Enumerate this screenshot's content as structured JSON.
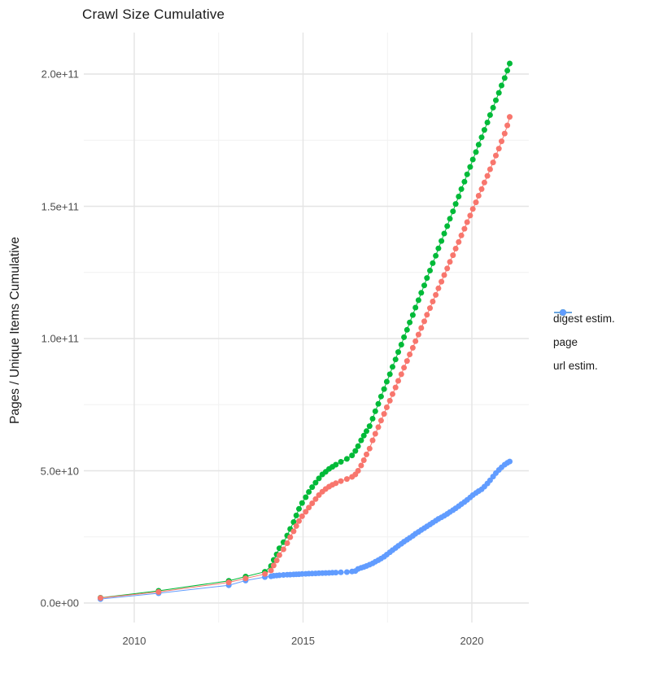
{
  "chart_data": {
    "type": "scatter",
    "title": "Crawl Size Cumulative",
    "xlabel": "",
    "ylabel": "Pages / Unique Items Cumulative",
    "y_unit": "items (point values stored in billions, 1e9)",
    "grid": "major and minor, light gray on white (theme_minimal)",
    "legend_position": "right",
    "x_axis": {
      "ticks": [
        {
          "value": 2010,
          "label": "2010"
        },
        {
          "value": 2015,
          "label": "2015"
        },
        {
          "value": 2020,
          "label": "2020"
        }
      ],
      "minor_ticks": [
        2012.5,
        2017.5
      ],
      "range": [
        2008.5,
        2021.7
      ]
    },
    "y_axis": {
      "ticks": [
        {
          "value": 0,
          "label": "0.0e+00"
        },
        {
          "value": 50,
          "label": "5.0e+10"
        },
        {
          "value": 100,
          "label": "1.0e+11"
        },
        {
          "value": 150,
          "label": "1.5e+11"
        },
        {
          "value": 200,
          "label": "2.0e+11"
        }
      ],
      "minor_ticks": [
        25,
        75,
        125,
        175
      ],
      "range": [
        0,
        215
      ]
    },
    "series": [
      {
        "name": "digest estim.",
        "color": "#F8766D",
        "points": [
          [
            2009.0,
            1.9
          ],
          [
            2010.72,
            4.2
          ],
          [
            2012.8,
            7.8
          ],
          [
            2013.3,
            9.3
          ],
          [
            2013.87,
            11.0
          ],
          [
            2014.05,
            12.3
          ],
          [
            2014.13,
            14.2
          ],
          [
            2014.22,
            16.1
          ],
          [
            2014.3,
            18.1
          ],
          [
            2014.42,
            20.3
          ],
          [
            2014.53,
            22.6
          ],
          [
            2014.62,
            24.9
          ],
          [
            2014.72,
            27.1
          ],
          [
            2014.8,
            29.1
          ],
          [
            2014.88,
            31.0
          ],
          [
            2014.97,
            32.8
          ],
          [
            2015.08,
            34.5
          ],
          [
            2015.17,
            36.1
          ],
          [
            2015.27,
            37.7
          ],
          [
            2015.37,
            39.3
          ],
          [
            2015.47,
            40.8
          ],
          [
            2015.57,
            42.1
          ],
          [
            2015.67,
            43.1
          ],
          [
            2015.77,
            44.0
          ],
          [
            2015.87,
            44.7
          ],
          [
            2015.97,
            45.3
          ],
          [
            2016.12,
            46.1
          ],
          [
            2016.3,
            46.9
          ],
          [
            2016.45,
            47.7
          ],
          [
            2016.55,
            48.6
          ],
          [
            2016.63,
            50.0
          ],
          [
            2016.72,
            52.0
          ],
          [
            2016.8,
            54.0
          ],
          [
            2016.88,
            56.2
          ],
          [
            2016.97,
            58.4
          ],
          [
            2017.06,
            61.5
          ],
          [
            2017.14,
            64.0
          ],
          [
            2017.23,
            66.5
          ],
          [
            2017.31,
            69.0
          ],
          [
            2017.4,
            71.5
          ],
          [
            2017.48,
            74.0
          ],
          [
            2017.57,
            76.5
          ],
          [
            2017.65,
            79.0
          ],
          [
            2017.74,
            81.5
          ],
          [
            2017.82,
            84.0
          ],
          [
            2017.91,
            86.5
          ],
          [
            2017.99,
            89.0
          ],
          [
            2018.08,
            91.5
          ],
          [
            2018.16,
            94.0
          ],
          [
            2018.25,
            96.5
          ],
          [
            2018.33,
            99.0
          ],
          [
            2018.42,
            101.5
          ],
          [
            2018.5,
            104.0
          ],
          [
            2018.59,
            106.5
          ],
          [
            2018.67,
            109.0
          ],
          [
            2018.76,
            111.5
          ],
          [
            2018.84,
            114.0
          ],
          [
            2018.93,
            116.5
          ],
          [
            2019.01,
            119.0
          ],
          [
            2019.1,
            121.5
          ],
          [
            2019.18,
            124.0
          ],
          [
            2019.27,
            126.5
          ],
          [
            2019.35,
            129.0
          ],
          [
            2019.44,
            131.5
          ],
          [
            2019.52,
            134.0
          ],
          [
            2019.61,
            136.5
          ],
          [
            2019.69,
            139.0
          ],
          [
            2019.78,
            141.5
          ],
          [
            2019.86,
            144.0
          ],
          [
            2019.95,
            146.5
          ],
          [
            2020.03,
            149.0
          ],
          [
            2020.12,
            151.5
          ],
          [
            2020.2,
            154.0
          ],
          [
            2020.29,
            156.5
          ],
          [
            2020.37,
            159.0
          ],
          [
            2020.46,
            161.5
          ],
          [
            2020.54,
            164.0
          ],
          [
            2020.63,
            166.6
          ],
          [
            2020.71,
            169.2
          ],
          [
            2020.8,
            171.8
          ],
          [
            2020.88,
            174.6
          ],
          [
            2020.97,
            177.5
          ],
          [
            2021.05,
            180.6
          ],
          [
            2021.12,
            183.8
          ]
        ]
      },
      {
        "name": "page",
        "color": "#00BA38",
        "points": [
          [
            2009.0,
            2.0
          ],
          [
            2010.72,
            4.6
          ],
          [
            2012.8,
            8.4
          ],
          [
            2013.3,
            10.0
          ],
          [
            2013.87,
            11.8
          ],
          [
            2014.05,
            14.0
          ],
          [
            2014.13,
            16.3
          ],
          [
            2014.22,
            18.4
          ],
          [
            2014.3,
            20.7
          ],
          [
            2014.42,
            23.0
          ],
          [
            2014.53,
            25.5
          ],
          [
            2014.62,
            28.0
          ],
          [
            2014.72,
            30.6
          ],
          [
            2014.8,
            33.1
          ],
          [
            2014.88,
            35.6
          ],
          [
            2014.97,
            37.8
          ],
          [
            2015.08,
            40.0
          ],
          [
            2015.17,
            42.0
          ],
          [
            2015.27,
            43.8
          ],
          [
            2015.37,
            45.5
          ],
          [
            2015.47,
            47.1
          ],
          [
            2015.57,
            48.6
          ],
          [
            2015.67,
            49.6
          ],
          [
            2015.77,
            50.7
          ],
          [
            2015.87,
            51.5
          ],
          [
            2015.97,
            52.3
          ],
          [
            2016.12,
            53.4
          ],
          [
            2016.3,
            54.5
          ],
          [
            2016.45,
            55.8
          ],
          [
            2016.55,
            57.5
          ],
          [
            2016.63,
            59.3
          ],
          [
            2016.72,
            61.5
          ],
          [
            2016.8,
            63.3
          ],
          [
            2016.88,
            65.0
          ],
          [
            2016.97,
            66.9
          ],
          [
            2017.06,
            69.7
          ],
          [
            2017.14,
            72.5
          ],
          [
            2017.23,
            75.3
          ],
          [
            2017.31,
            78.1
          ],
          [
            2017.4,
            80.9
          ],
          [
            2017.48,
            83.7
          ],
          [
            2017.57,
            86.5
          ],
          [
            2017.65,
            89.3
          ],
          [
            2017.74,
            92.1
          ],
          [
            2017.82,
            94.9
          ],
          [
            2017.91,
            97.7
          ],
          [
            2017.99,
            100.5
          ],
          [
            2018.08,
            103.3
          ],
          [
            2018.16,
            106.1
          ],
          [
            2018.25,
            108.9
          ],
          [
            2018.33,
            111.7
          ],
          [
            2018.42,
            114.5
          ],
          [
            2018.5,
            117.3
          ],
          [
            2018.59,
            120.1
          ],
          [
            2018.67,
            122.9
          ],
          [
            2018.76,
            125.7
          ],
          [
            2018.84,
            128.5
          ],
          [
            2018.93,
            131.3
          ],
          [
            2019.01,
            134.1
          ],
          [
            2019.1,
            136.9
          ],
          [
            2019.18,
            139.7
          ],
          [
            2019.27,
            142.5
          ],
          [
            2019.35,
            145.3
          ],
          [
            2019.44,
            148.1
          ],
          [
            2019.52,
            150.9
          ],
          [
            2019.61,
            153.7
          ],
          [
            2019.69,
            156.5
          ],
          [
            2019.78,
            159.3
          ],
          [
            2019.86,
            162.1
          ],
          [
            2019.95,
            164.9
          ],
          [
            2020.03,
            167.7
          ],
          [
            2020.12,
            170.5
          ],
          [
            2020.2,
            173.3
          ],
          [
            2020.29,
            176.1
          ],
          [
            2020.37,
            178.9
          ],
          [
            2020.46,
            181.7
          ],
          [
            2020.54,
            184.5
          ],
          [
            2020.63,
            187.3
          ],
          [
            2020.71,
            190.1
          ],
          [
            2020.8,
            192.9
          ],
          [
            2020.88,
            195.7
          ],
          [
            2020.97,
            198.5
          ],
          [
            2021.05,
            201.3
          ],
          [
            2021.12,
            204.0
          ]
        ]
      },
      {
        "name": "url estim.",
        "color": "#619CFF",
        "points": [
          [
            2009.0,
            1.5
          ],
          [
            2010.72,
            3.7
          ],
          [
            2012.8,
            6.7
          ],
          [
            2013.3,
            8.5
          ],
          [
            2013.87,
            9.8
          ],
          [
            2014.05,
            10.1
          ],
          [
            2014.13,
            10.3
          ],
          [
            2014.22,
            10.4
          ],
          [
            2014.3,
            10.5
          ],
          [
            2014.42,
            10.6
          ],
          [
            2014.53,
            10.7
          ],
          [
            2014.62,
            10.75
          ],
          [
            2014.72,
            10.8
          ],
          [
            2014.8,
            10.85
          ],
          [
            2014.88,
            10.9
          ],
          [
            2014.97,
            11.0
          ],
          [
            2015.08,
            11.05
          ],
          [
            2015.17,
            11.1
          ],
          [
            2015.27,
            11.15
          ],
          [
            2015.37,
            11.2
          ],
          [
            2015.47,
            11.25
          ],
          [
            2015.57,
            11.3
          ],
          [
            2015.67,
            11.35
          ],
          [
            2015.77,
            11.4
          ],
          [
            2015.87,
            11.45
          ],
          [
            2015.97,
            11.5
          ],
          [
            2016.12,
            11.6
          ],
          [
            2016.3,
            11.7
          ],
          [
            2016.45,
            11.9
          ],
          [
            2016.55,
            12.1
          ],
          [
            2016.63,
            12.9
          ],
          [
            2016.72,
            13.3
          ],
          [
            2016.8,
            13.6
          ],
          [
            2016.88,
            14.0
          ],
          [
            2016.97,
            14.5
          ],
          [
            2017.06,
            15.0
          ],
          [
            2017.14,
            15.6
          ],
          [
            2017.23,
            16.2
          ],
          [
            2017.31,
            16.8
          ],
          [
            2017.4,
            17.5
          ],
          [
            2017.48,
            18.3
          ],
          [
            2017.57,
            19.2
          ],
          [
            2017.65,
            20.0
          ],
          [
            2017.74,
            20.8
          ],
          [
            2017.82,
            21.6
          ],
          [
            2017.91,
            22.4
          ],
          [
            2017.99,
            23.2
          ],
          [
            2018.08,
            23.9
          ],
          [
            2018.16,
            24.6
          ],
          [
            2018.25,
            25.4
          ],
          [
            2018.33,
            26.2
          ],
          [
            2018.42,
            26.9
          ],
          [
            2018.5,
            27.6
          ],
          [
            2018.59,
            28.3
          ],
          [
            2018.67,
            29.0
          ],
          [
            2018.76,
            29.7
          ],
          [
            2018.84,
            30.4
          ],
          [
            2018.93,
            31.1
          ],
          [
            2019.01,
            31.8
          ],
          [
            2019.1,
            32.4
          ],
          [
            2019.18,
            33.0
          ],
          [
            2019.27,
            33.7
          ],
          [
            2019.35,
            34.4
          ],
          [
            2019.44,
            35.1
          ],
          [
            2019.52,
            35.8
          ],
          [
            2019.61,
            36.6
          ],
          [
            2019.69,
            37.4
          ],
          [
            2019.78,
            38.2
          ],
          [
            2019.86,
            39.0
          ],
          [
            2019.95,
            39.9
          ],
          [
            2020.03,
            40.8
          ],
          [
            2020.12,
            41.6
          ],
          [
            2020.2,
            42.3
          ],
          [
            2020.29,
            43.0
          ],
          [
            2020.37,
            44.0
          ],
          [
            2020.46,
            45.2
          ],
          [
            2020.54,
            46.4
          ],
          [
            2020.63,
            47.8
          ],
          [
            2020.71,
            49.1
          ],
          [
            2020.8,
            50.3
          ],
          [
            2020.88,
            51.3
          ],
          [
            2020.97,
            52.3
          ],
          [
            2021.05,
            53.0
          ],
          [
            2021.12,
            53.5
          ]
        ]
      }
    ],
    "style": {
      "background": "#ffffff",
      "grid_major_color": "#e4e4e4",
      "grid_minor_color": "#f1f1f1",
      "tick_label_color": "#4d4d4d",
      "text_color": "#1a1a1a",
      "point_radius": 3.5,
      "line_width": 1,
      "draw_order": [
        "page",
        "url estim.",
        "digest estim."
      ]
    }
  }
}
